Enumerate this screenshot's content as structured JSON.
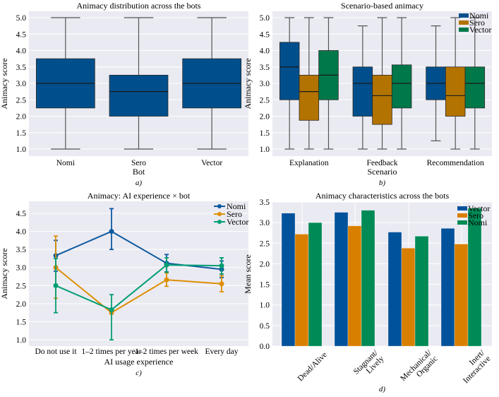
{
  "colors": {
    "nomi_box": "#004f8c",
    "sero_box": "#b27300",
    "vector_box": "#00784a",
    "nomi_line": "#0c5aa0",
    "sero_line": "#de8f05",
    "vector_line": "#029e73",
    "bar_blue": "#00529b",
    "bar_orange": "#d97f00",
    "bar_green": "#008a56",
    "plot_bg": "#eaeaf2",
    "grid": "#ffffff",
    "whisker": "#555555"
  },
  "chart_data": [
    {
      "id": "a",
      "type": "box",
      "title": "Animacy distribution across the bots",
      "xlabel": "Bot",
      "ylabel": "Animacy score",
      "caption": "a)",
      "ylim": [
        0.9,
        5.1
      ],
      "yticks": [
        "1.0",
        "1.5",
        "2.0",
        "2.5",
        "3.0",
        "3.5",
        "4.0",
        "4.5",
        "5.0"
      ],
      "categories": [
        "Nomi",
        "Sero",
        "Vector"
      ],
      "boxes": [
        {
          "name": "Nomi",
          "min": 1.0,
          "q1": 2.25,
          "median": 3.0,
          "q3": 3.75,
          "max": 5.0
        },
        {
          "name": "Sero",
          "min": 1.0,
          "q1": 2.0,
          "median": 2.75,
          "q3": 3.25,
          "max": 5.0
        },
        {
          "name": "Vector",
          "min": 1.0,
          "q1": 2.25,
          "median": 3.0,
          "q3": 3.75,
          "max": 5.0
        }
      ]
    },
    {
      "id": "b",
      "type": "box",
      "title": "Scenario-based animacy",
      "xlabel": "Scenario",
      "ylabel": "Animacy score",
      "caption": "b)",
      "ylim": [
        0.9,
        5.1
      ],
      "yticks": [
        "1.0",
        "1.5",
        "2.0",
        "2.5",
        "3.0",
        "3.5",
        "4.0",
        "4.5",
        "5.0"
      ],
      "categories": [
        "Explanation",
        "Feedback",
        "Recommendation"
      ],
      "legend": [
        "Nomi",
        "Sero",
        "Vector"
      ],
      "legend_position": "top-right",
      "groups": [
        {
          "category": "Explanation",
          "boxes": [
            {
              "name": "Nomi",
              "min": 1.0,
              "q1": 2.5,
              "median": 3.5,
              "q3": 4.25,
              "max": 5.0
            },
            {
              "name": "Sero",
              "min": 1.0,
              "q1": 1.875,
              "median": 2.75,
              "q3": 3.25,
              "max": 5.0
            },
            {
              "name": "Vector",
              "min": 1.0,
              "q1": 2.5,
              "median": 3.25,
              "q3": 4.0,
              "max": 5.0
            }
          ]
        },
        {
          "category": "Feedback",
          "boxes": [
            {
              "name": "Nomi",
              "min": 1.0,
              "q1": 2.0,
              "median": 3.0,
              "q3": 3.5,
              "max": 4.75
            },
            {
              "name": "Sero",
              "min": 1.0,
              "q1": 1.75,
              "median": 2.625,
              "q3": 3.25,
              "max": 5.0
            },
            {
              "name": "Vector",
              "min": 1.0,
              "q1": 2.25,
              "median": 3.0,
              "q3": 3.5625,
              "max": 5.0
            }
          ]
        },
        {
          "category": "Recommendation",
          "boxes": [
            {
              "name": "Nomi",
              "min": 1.25,
              "q1": 2.5,
              "median": 3.0,
              "q3": 3.5,
              "max": 4.75
            },
            {
              "name": "Sero",
              "min": 1.0,
              "q1": 2.0,
              "median": 2.625,
              "q3": 3.5,
              "max": 5.0
            },
            {
              "name": "Vector",
              "min": 1.0,
              "q1": 2.25,
              "median": 3.0,
              "q3": 3.5,
              "max": 5.0
            }
          ]
        }
      ]
    },
    {
      "id": "c",
      "type": "line",
      "title": "Animacy: AI experience × bot",
      "xlabel": "AI usage experience",
      "ylabel": "Animacy score",
      "caption": "c)",
      "ylim": [
        0.85,
        4.8
      ],
      "yticks": [
        "1.0",
        "1.5",
        "2.0",
        "2.5",
        "3.0",
        "3.5",
        "4.0",
        "4.5"
      ],
      "categories": [
        "Do not use it",
        "1–2 times per year",
        "1–2 times per week",
        "Every day"
      ],
      "legend_position": "top-right",
      "series": [
        {
          "name": "Nomi",
          "values": [
            3.33,
            4.0,
            3.12,
            2.95
          ],
          "err_low": [
            2.9,
            3.5,
            2.88,
            2.72
          ],
          "err_high": [
            3.75,
            4.63,
            3.36,
            3.18
          ]
        },
        {
          "name": "Sero",
          "values": [
            3.0,
            1.75,
            2.66,
            2.55
          ],
          "err_low": [
            2.15,
            1.72,
            2.48,
            2.33
          ],
          "err_high": [
            3.87,
            1.8,
            2.85,
            2.77
          ]
        },
        {
          "name": "Vector",
          "values": [
            2.5,
            1.83,
            3.07,
            3.05
          ],
          "err_low": [
            1.75,
            1.0,
            2.87,
            2.82
          ],
          "err_high": [
            3.25,
            2.25,
            3.27,
            3.27
          ]
        }
      ]
    },
    {
      "id": "d",
      "type": "bar",
      "title": "Animacy characteristics across the bots",
      "xlabel": "",
      "ylabel": "Mean score",
      "caption": "d)",
      "ylim": [
        0.0,
        3.5
      ],
      "yticks": [
        "0.0",
        "0.5",
        "1.0",
        "1.5",
        "2.0",
        "2.5",
        "3.0",
        "3.5"
      ],
      "categories": [
        [
          "Dead/Alive"
        ],
        [
          "Stagnant/",
          "Lively"
        ],
        [
          "Mechanical/",
          "Organic"
        ],
        [
          "Inert/",
          "Interactive"
        ]
      ],
      "legend_position": "top-right",
      "series": [
        {
          "name": "Vector",
          "values": [
            3.23,
            3.25,
            2.77,
            2.86
          ]
        },
        {
          "name": "Sero",
          "values": [
            2.72,
            2.92,
            2.38,
            2.48
          ]
        },
        {
          "name": "Nomi",
          "values": [
            3.0,
            3.3,
            2.67,
            3.35
          ]
        }
      ]
    }
  ]
}
